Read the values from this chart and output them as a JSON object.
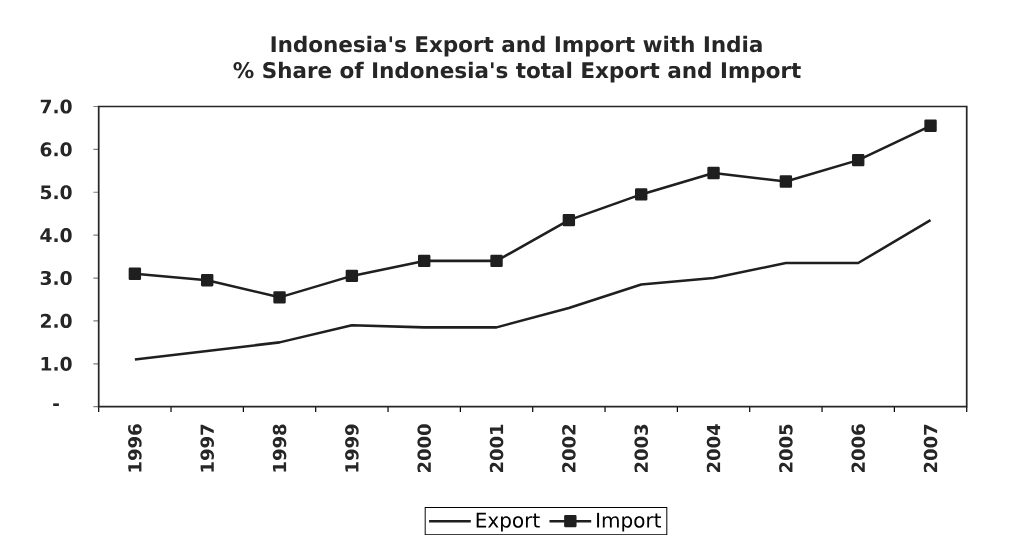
{
  "chart_data": {
    "type": "line",
    "title": "Indonesia's Export and Import with India",
    "subtitle": "% Share of Indonesia's total Export and Import",
    "categories": [
      "1996",
      "1997",
      "1998",
      "1999",
      "2000",
      "2001",
      "2002",
      "2003",
      "2004",
      "2005",
      "2006",
      "2007"
    ],
    "series": [
      {
        "name": "Export",
        "color": "#1f1f1f",
        "marker": "none",
        "values": [
          1.1,
          1.3,
          1.5,
          1.9,
          1.85,
          1.85,
          2.3,
          2.85,
          3.0,
          3.35,
          3.35,
          4.35
        ]
      },
      {
        "name": "Import",
        "color": "#1f1f1f",
        "marker": "square",
        "values": [
          3.1,
          2.95,
          2.55,
          3.05,
          3.4,
          3.4,
          4.35,
          4.95,
          5.45,
          5.25,
          5.75,
          6.55
        ]
      }
    ],
    "ylim": [
      0,
      7
    ],
    "yticks": [
      {
        "value": 0,
        "label": "-"
      },
      {
        "value": 1,
        "label": "1.0"
      },
      {
        "value": 2,
        "label": "2.0"
      },
      {
        "value": 3,
        "label": "3.0"
      },
      {
        "value": 4,
        "label": "4.0"
      },
      {
        "value": 5,
        "label": "5.0"
      },
      {
        "value": 6,
        "label": "6.0"
      },
      {
        "value": 7,
        "label": "7.0"
      }
    ],
    "legend": "bottom",
    "line_style": "solid"
  }
}
